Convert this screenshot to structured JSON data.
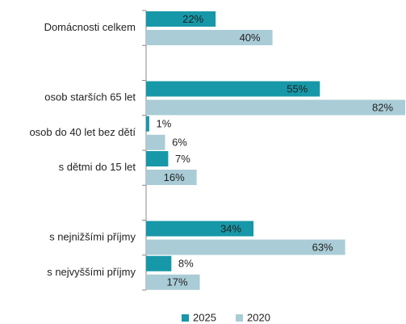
{
  "chart_data": {
    "type": "hbar",
    "categories": [
      "Domácnosti celkem",
      null,
      "osob starších 65 let",
      "osob do 40 let bez dětí",
      "s dětmi do 15 let",
      null,
      "s nejnižšími příjmy",
      "s nejvyššími příjmy"
    ],
    "series": [
      {
        "name": "2025",
        "color": "#1798a8",
        "values": [
          22,
          null,
          55,
          1,
          7,
          null,
          34,
          8
        ],
        "value_labels": [
          "22%",
          null,
          "55%",
          "1%",
          "7%",
          null,
          "34%",
          "8%"
        ]
      },
      {
        "name": "2020",
        "color": "#a9ccd6",
        "values": [
          40,
          null,
          82,
          6,
          16,
          null,
          63,
          17
        ],
        "value_labels": [
          "40%",
          null,
          "82%",
          "6%",
          "16%",
          null,
          "63%",
          "17%"
        ]
      }
    ],
    "xlim": [
      0,
      82
    ],
    "legend": "bottom"
  }
}
